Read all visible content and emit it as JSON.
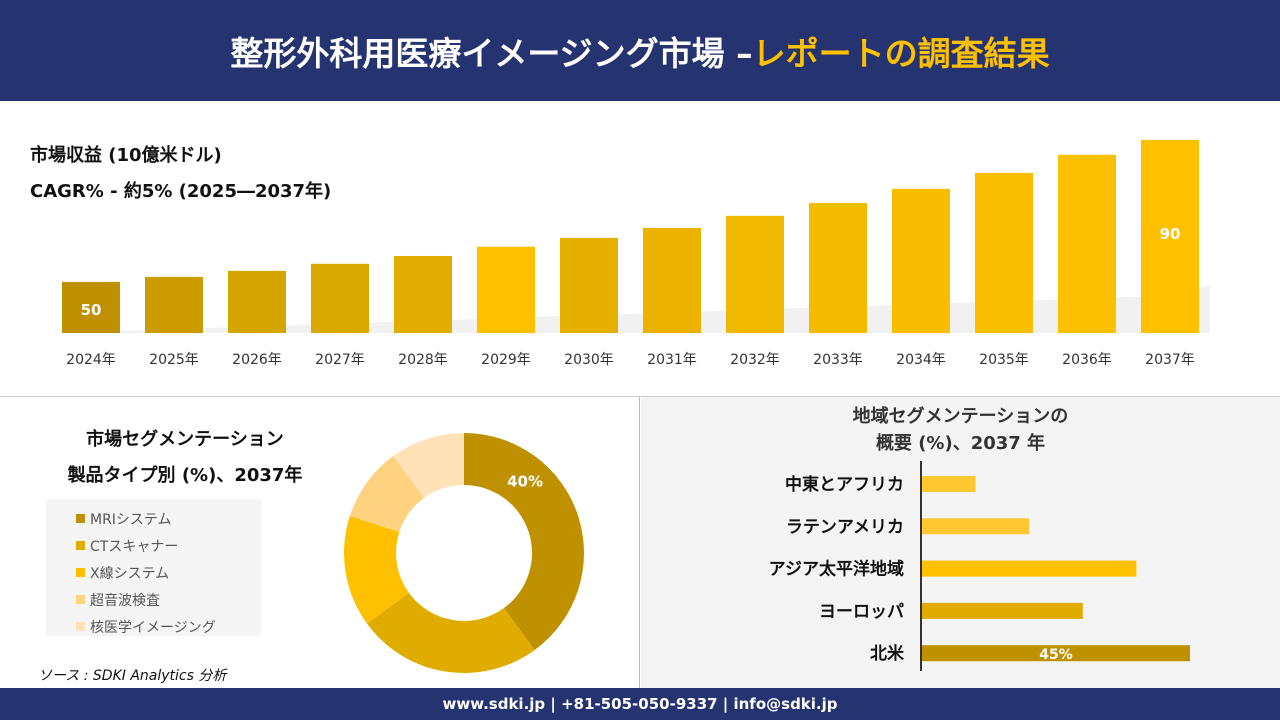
{
  "header": {
    "title_main": "整形外科用医療イメージング市場 –",
    "title_accent": "レポートの調査結果"
  },
  "revenue": {
    "label": "市場収益 (10億米ドル)",
    "cagr": "CAGR% - 約5% (2025―2037年)"
  },
  "segment": {
    "title1": "市場セグメンテーション",
    "title2": "製品タイプ別 (%)、2037年"
  },
  "region": {
    "title1": "地域セグメンテーションの",
    "title2": "概要 (%)、2037 年"
  },
  "source": "ソース : SDKI Analytics 分析",
  "footer": "www.sdki.jp | +81-505-050-9337 | info@sdki.jp",
  "chart_data": [
    {
      "type": "bar",
      "categories": [
        "2024年",
        "2025年",
        "2026年",
        "2027年",
        "2028年",
        "2029年",
        "2030年",
        "2031年",
        "2032年",
        "2033年",
        "2034年",
        "2035年",
        "2036年",
        "2037年"
      ],
      "values": [
        50,
        51.4,
        53.1,
        55.1,
        57.3,
        59.9,
        62.4,
        65.2,
        68.6,
        72.2,
        76.2,
        80.7,
        85.8,
        90
      ],
      "data_labels": {
        "0": "50",
        "13": "90"
      },
      "colors": [
        "#BF9000",
        "#CC9C00",
        "#D4A400",
        "#D9A800",
        "#E0AD00",
        "#FFC000",
        "#E6B000",
        "#EBB300",
        "#F0B800",
        "#F5BB00",
        "#F8BD00",
        "#FBBF00",
        "#FDC000",
        "#FFC000"
      ],
      "ylim": [
        35.6,
        92
      ],
      "grid": false
    },
    {
      "type": "pie",
      "donut": true,
      "categories": [
        "MRIシステム",
        "CTスキャナー",
        "X線システム",
        "超音波検査",
        "核医学イメージング"
      ],
      "values": [
        40,
        25,
        15,
        10,
        10
      ],
      "data_labels": {
        "0": "40%"
      },
      "colors": [
        "#BF9000",
        "#E0AC00",
        "#FFC000",
        "#FFD280",
        "#FFE2B8"
      ],
      "legend": "left"
    },
    {
      "type": "bar",
      "orientation": "horizontal",
      "categories": [
        "中東とアフリカ",
        "ラテンアメリカ",
        "アジア太平洋地域",
        "ヨーロッパ",
        "北米"
      ],
      "values": [
        9,
        18,
        36,
        27,
        45
      ],
      "data_labels": {
        "4": "45%"
      },
      "colors": [
        "#FFC830",
        "#FFC830",
        "#FFC000",
        "#E0AC00",
        "#BF9000"
      ]
    }
  ]
}
